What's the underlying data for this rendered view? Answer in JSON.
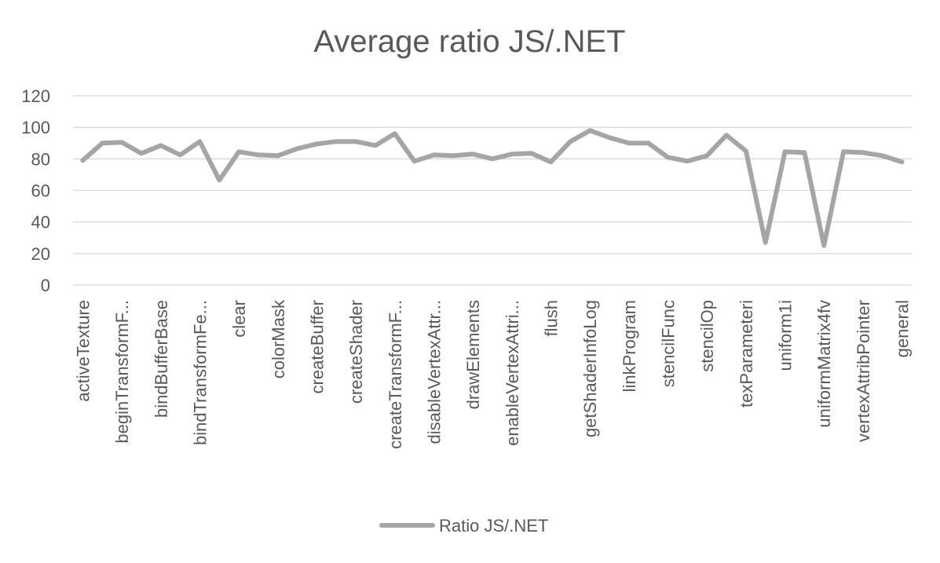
{
  "chart_data": {
    "type": "line",
    "title": "Average ratio JS/.NET",
    "xlabel": "",
    "ylabel": "",
    "ylim": [
      0,
      120
    ],
    "yticks": [
      0,
      20,
      40,
      60,
      80,
      100,
      120
    ],
    "grid": true,
    "legend_position": "bottom",
    "x": [
      "activeTexture",
      "",
      "beginTransformF...",
      "",
      "bindBufferBase",
      "",
      "bindTransformFe...",
      "",
      "clear",
      "",
      "colorMask",
      "",
      "createBuffer",
      "",
      "createShader",
      "",
      "createTransformF...",
      "",
      "disableVertexAttr...",
      "",
      "drawElements",
      "",
      "enableVertexAttri...",
      "",
      "flush",
      "",
      "getShaderInfoLog",
      "",
      "linkProgram",
      "",
      "stencilFunc",
      "",
      "stencilOp",
      "",
      "texParameteri",
      "",
      "uniform1i",
      "",
      "uniformMatrix4fv",
      "",
      "vertexAttribPointer",
      "",
      "general"
    ],
    "series": [
      {
        "name": "Ratio JS/.NET",
        "color": "#a5a5a5",
        "values": [
          79,
          90,
          90.5,
          83.5,
          88.5,
          82.5,
          91,
          66.5,
          84.5,
          82.5,
          82,
          86.5,
          89.5,
          91,
          91,
          88.5,
          96,
          78.5,
          82.5,
          82,
          83,
          80,
          83,
          83.5,
          78,
          91,
          98,
          93.5,
          90,
          90,
          81,
          78.5,
          82,
          95,
          85,
          27,
          84.5,
          84,
          25,
          84.5,
          84,
          82,
          78
        ]
      }
    ]
  }
}
